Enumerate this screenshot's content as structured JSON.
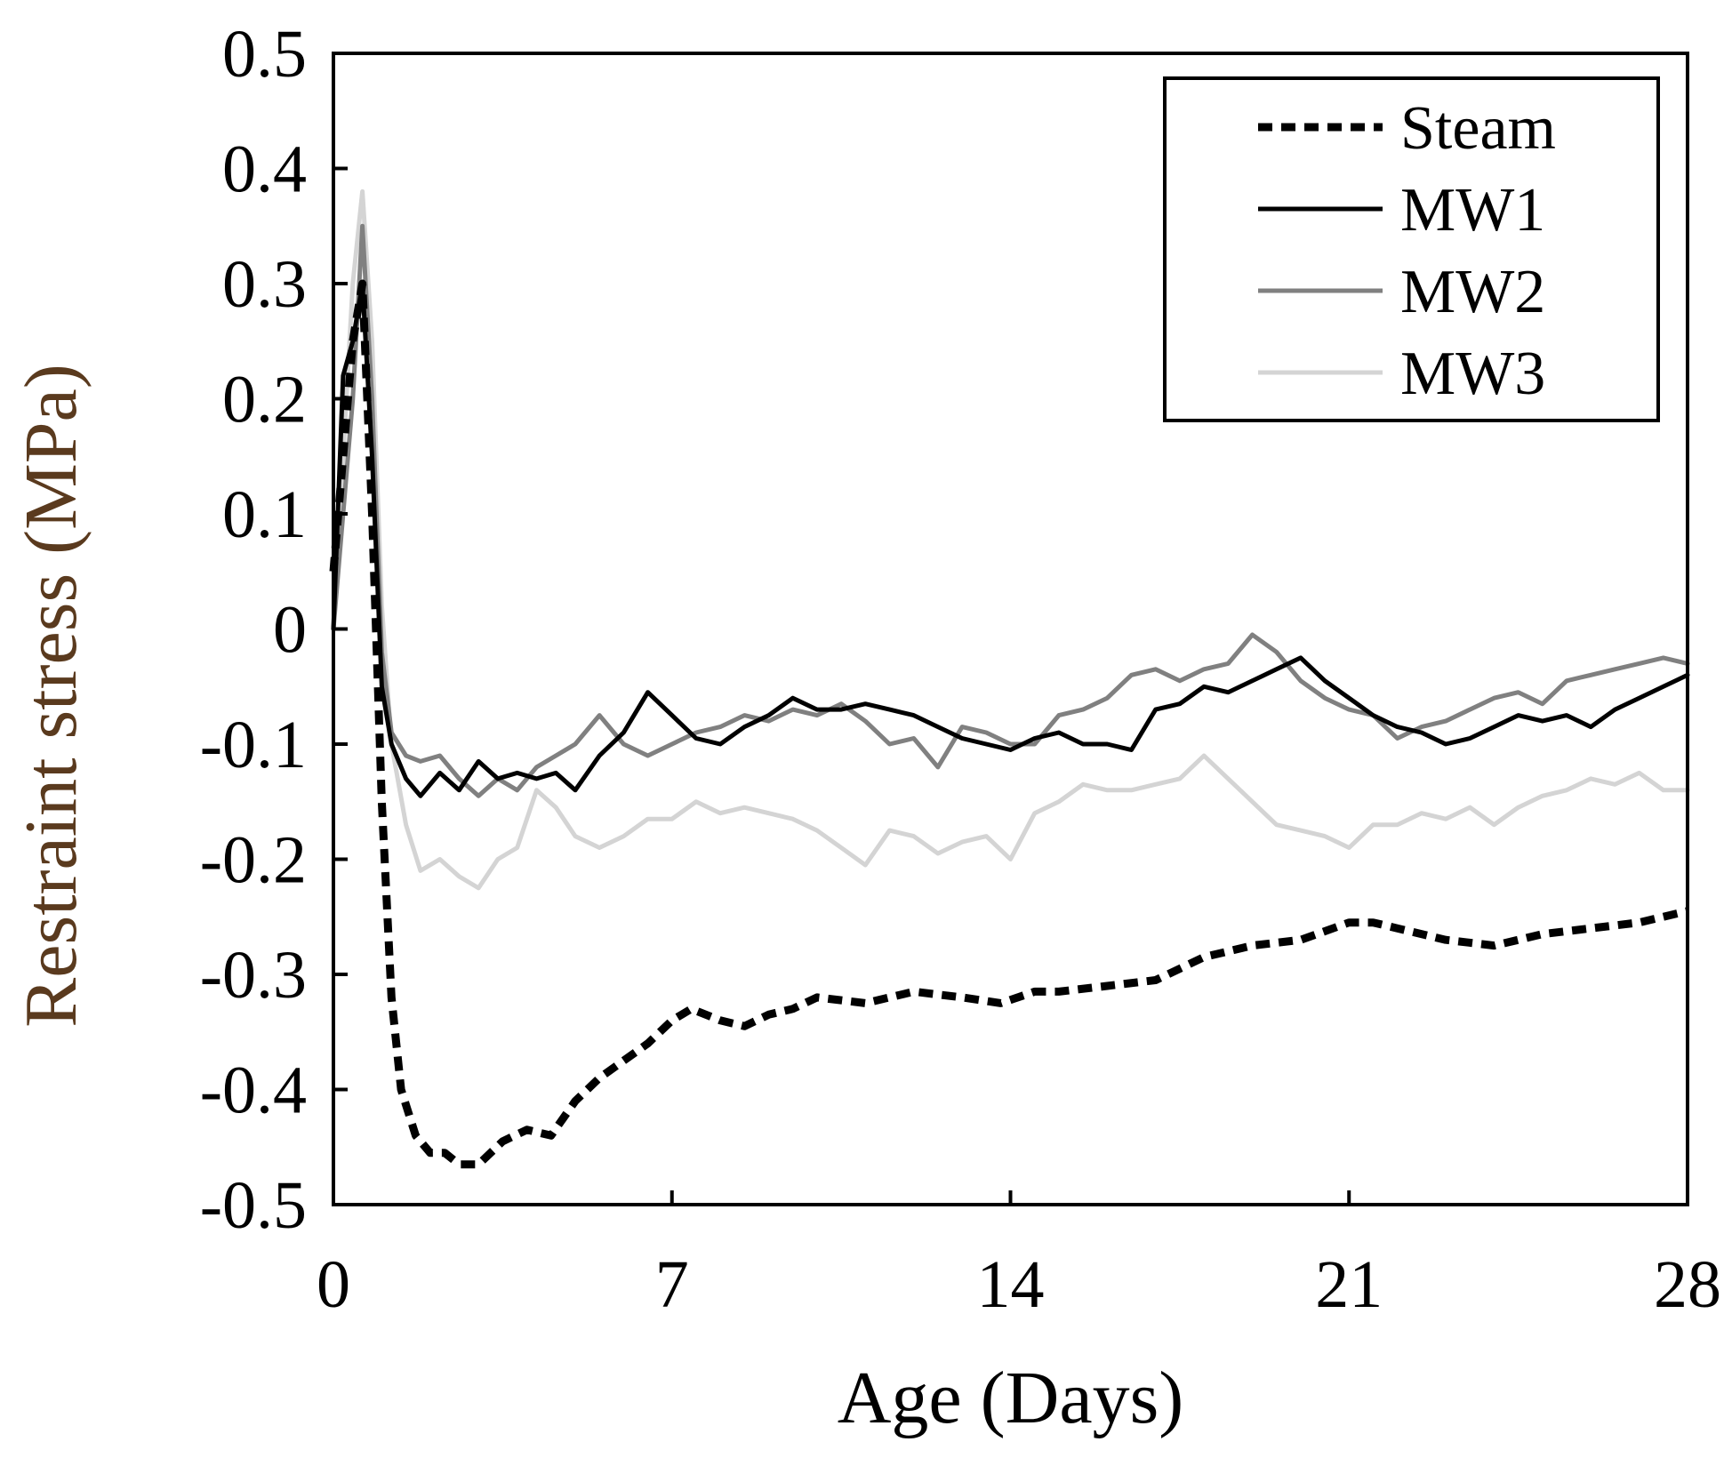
{
  "chart_data": {
    "type": "line",
    "title": "",
    "xlabel": "Age (Days)",
    "ylabel": "Restraint stress (MPa)",
    "xlim": [
      0,
      28
    ],
    "ylim": [
      -0.5,
      0.5
    ],
    "x_ticks": [
      0,
      7,
      14,
      21,
      28
    ],
    "x_tick_labels": [
      "0",
      "7",
      "14",
      "21",
      "28"
    ],
    "y_ticks": [
      0.5,
      0.4,
      0.3,
      0.2,
      0.1,
      0,
      -0.1,
      -0.2,
      -0.3,
      -0.4,
      -0.5
    ],
    "y_tick_labels": [
      "0.5",
      "0.4",
      "0.3",
      "0.2",
      "0.1",
      "0",
      "-0.1",
      "-0.2",
      "-0.3",
      "-0.4",
      "-0.5"
    ],
    "grid": false,
    "legend_position": "top-right",
    "series": [
      {
        "name": "Steam",
        "color": "#000000",
        "dash": "dashed",
        "x": [
          0,
          0.2,
          0.4,
          0.6,
          0.8,
          1.0,
          1.2,
          1.4,
          1.7,
          2.0,
          2.3,
          2.6,
          3.0,
          3.5,
          4.0,
          4.5,
          5.0,
          5.5,
          6.0,
          6.5,
          7.0,
          7.4,
          8.0,
          8.5,
          9.0,
          9.5,
          10.0,
          11.0,
          12.0,
          13.0,
          13.8,
          14.5,
          15.0,
          16.0,
          17.0,
          18.0,
          19.0,
          20.0,
          21.0,
          21.5,
          22.0,
          23.0,
          24.0,
          24.5,
          25.0,
          26.0,
          27.0,
          28.0
        ],
        "y": [
          0.05,
          0.15,
          0.25,
          0.3,
          0.1,
          -0.15,
          -0.32,
          -0.4,
          -0.44,
          -0.455,
          -0.455,
          -0.465,
          -0.465,
          -0.445,
          -0.435,
          -0.44,
          -0.41,
          -0.39,
          -0.375,
          -0.36,
          -0.34,
          -0.33,
          -0.34,
          -0.345,
          -0.335,
          -0.33,
          -0.32,
          -0.325,
          -0.315,
          -0.32,
          -0.325,
          -0.315,
          -0.315,
          -0.31,
          -0.305,
          -0.285,
          -0.275,
          -0.27,
          -0.255,
          -0.255,
          -0.26,
          -0.27,
          -0.275,
          -0.27,
          -0.265,
          -0.26,
          -0.255,
          -0.245
        ]
      },
      {
        "name": "MW1",
        "color": "#000000",
        "dash": "solid",
        "x": [
          0,
          0.2,
          0.4,
          0.6,
          0.8,
          1.0,
          1.2,
          1.5,
          1.8,
          2.2,
          2.6,
          3.0,
          3.4,
          3.8,
          4.2,
          4.6,
          5.0,
          5.5,
          6.0,
          6.5,
          7.0,
          7.5,
          8.0,
          8.5,
          9.0,
          9.5,
          10.0,
          10.5,
          11.0,
          11.5,
          12.0,
          12.5,
          13.0,
          13.5,
          14.0,
          14.5,
          15.0,
          15.5,
          16.0,
          16.5,
          17.0,
          17.5,
          18.0,
          18.5,
          19.0,
          19.5,
          20.0,
          20.5,
          21.0,
          21.5,
          22.0,
          22.5,
          23.0,
          23.5,
          24.0,
          24.5,
          25.0,
          25.5,
          26.0,
          26.5,
          27.0,
          27.5,
          28.0
        ],
        "y": [
          0.0,
          0.22,
          0.25,
          0.3,
          0.15,
          -0.05,
          -0.1,
          -0.13,
          -0.145,
          -0.125,
          -0.14,
          -0.115,
          -0.13,
          -0.125,
          -0.13,
          -0.125,
          -0.14,
          -0.11,
          -0.09,
          -0.055,
          -0.075,
          -0.095,
          -0.1,
          -0.085,
          -0.075,
          -0.06,
          -0.07,
          -0.07,
          -0.065,
          -0.07,
          -0.075,
          -0.085,
          -0.095,
          -0.1,
          -0.105,
          -0.095,
          -0.09,
          -0.1,
          -0.1,
          -0.105,
          -0.07,
          -0.065,
          -0.05,
          -0.055,
          -0.045,
          -0.035,
          -0.025,
          -0.045,
          -0.06,
          -0.075,
          -0.085,
          -0.09,
          -0.1,
          -0.095,
          -0.085,
          -0.075,
          -0.08,
          -0.075,
          -0.085,
          -0.07,
          -0.06,
          -0.05,
          -0.04
        ]
      },
      {
        "name": "MW2",
        "color": "#808080",
        "dash": "solid",
        "x": [
          0,
          0.2,
          0.4,
          0.6,
          0.8,
          1.0,
          1.2,
          1.5,
          1.8,
          2.2,
          2.6,
          3.0,
          3.4,
          3.8,
          4.2,
          4.6,
          5.0,
          5.5,
          6.0,
          6.5,
          7.0,
          7.5,
          8.0,
          8.5,
          9.0,
          9.5,
          10.0,
          10.5,
          11.0,
          11.5,
          12.0,
          12.5,
          13.0,
          13.5,
          14.0,
          14.5,
          15.0,
          15.5,
          16.0,
          16.5,
          17.0,
          17.5,
          18.0,
          18.5,
          19.0,
          19.5,
          20.0,
          20.5,
          21.0,
          21.5,
          22.0,
          22.5,
          23.0,
          23.5,
          24.0,
          24.5,
          25.0,
          25.5,
          26.0,
          26.5,
          27.0,
          27.5,
          28.0
        ],
        "y": [
          0.0,
          0.1,
          0.2,
          0.35,
          0.2,
          -0.02,
          -0.09,
          -0.11,
          -0.115,
          -0.11,
          -0.13,
          -0.145,
          -0.13,
          -0.14,
          -0.12,
          -0.11,
          -0.1,
          -0.075,
          -0.1,
          -0.11,
          -0.1,
          -0.09,
          -0.085,
          -0.075,
          -0.08,
          -0.07,
          -0.075,
          -0.065,
          -0.08,
          -0.1,
          -0.095,
          -0.12,
          -0.085,
          -0.09,
          -0.1,
          -0.1,
          -0.075,
          -0.07,
          -0.06,
          -0.04,
          -0.035,
          -0.045,
          -0.035,
          -0.03,
          -0.005,
          -0.02,
          -0.045,
          -0.06,
          -0.07,
          -0.075,
          -0.095,
          -0.085,
          -0.08,
          -0.07,
          -0.06,
          -0.055,
          -0.065,
          -0.045,
          -0.04,
          -0.035,
          -0.03,
          -0.025,
          -0.03
        ]
      },
      {
        "name": "MW3",
        "color": "#d4d4d4",
        "dash": "solid",
        "x": [
          0,
          0.2,
          0.4,
          0.6,
          0.8,
          1.0,
          1.2,
          1.5,
          1.8,
          2.2,
          2.6,
          3.0,
          3.4,
          3.8,
          4.2,
          4.6,
          5.0,
          5.5,
          6.0,
          6.5,
          7.0,
          7.5,
          8.0,
          8.5,
          9.0,
          9.5,
          10.0,
          10.5,
          11.0,
          11.5,
          12.0,
          12.5,
          13.0,
          13.5,
          14.0,
          14.5,
          15.0,
          15.5,
          16.0,
          16.5,
          17.0,
          17.5,
          18.0,
          18.5,
          19.0,
          19.5,
          20.0,
          20.5,
          21.0,
          21.5,
          22.0,
          22.5,
          23.0,
          23.5,
          24.0,
          24.5,
          25.0,
          25.5,
          26.0,
          26.5,
          27.0,
          27.5,
          28.0
        ],
        "y": [
          0.0,
          0.15,
          0.3,
          0.38,
          0.25,
          0.02,
          -0.1,
          -0.17,
          -0.21,
          -0.2,
          -0.215,
          -0.225,
          -0.2,
          -0.19,
          -0.14,
          -0.155,
          -0.18,
          -0.19,
          -0.18,
          -0.165,
          -0.165,
          -0.15,
          -0.16,
          -0.155,
          -0.16,
          -0.165,
          -0.175,
          -0.19,
          -0.205,
          -0.175,
          -0.18,
          -0.195,
          -0.185,
          -0.18,
          -0.2,
          -0.16,
          -0.15,
          -0.135,
          -0.14,
          -0.14,
          -0.135,
          -0.13,
          -0.11,
          -0.13,
          -0.15,
          -0.17,
          -0.175,
          -0.18,
          -0.19,
          -0.17,
          -0.17,
          -0.16,
          -0.165,
          -0.155,
          -0.17,
          -0.155,
          -0.145,
          -0.14,
          -0.13,
          -0.135,
          -0.125,
          -0.14,
          -0.14
        ]
      }
    ]
  }
}
